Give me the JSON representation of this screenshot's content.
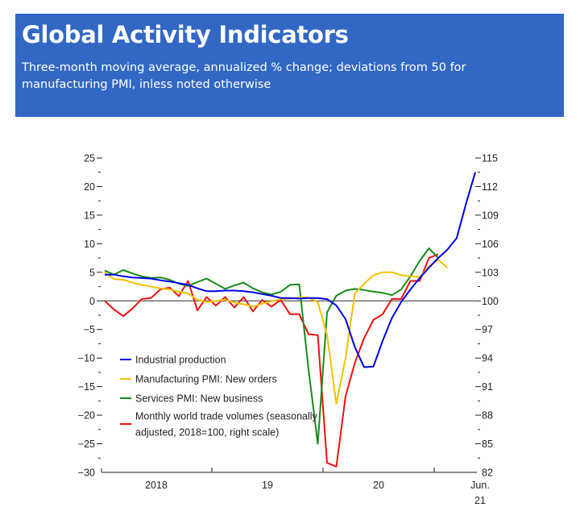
{
  "header": {
    "title": "Global Activity Indicators",
    "subtitle": "Three-month moving average, annualized % change; deviations from 50 for manufacturing PMI, inless noted otherwise"
  },
  "colors": {
    "header_bg": "#3268c4",
    "industrial": "#0000ee",
    "manufacturing": "#f2c100",
    "services": "#1a8a1a",
    "trade": "#ee1111",
    "zero_line": "#555555"
  },
  "chart_data": {
    "type": "line",
    "title": "Global Activity Indicators",
    "subtitle": "Three-month moving average, annualized % change; deviations from 50 for manufacturing PMI, inless noted otherwise",
    "x_start": "2018-01",
    "x_end": "2021-06",
    "x_tick_labels": [
      "2018",
      "19",
      "20",
      "Jun.",
      "21"
    ],
    "ylim_left": [
      -30,
      25
    ],
    "left_ticks": [
      "25",
      "20",
      "15",
      "10",
      "5",
      "0",
      "−5",
      "−10",
      "−15",
      "−20",
      "−25",
      "−30"
    ],
    "ylim_right": [
      82,
      115
    ],
    "right_ticks": [
      "115",
      "112",
      "109",
      "106",
      "103",
      "100",
      "97",
      "94",
      "91",
      "88",
      "85",
      "82"
    ],
    "legend": "center-left",
    "series": [
      {
        "name": "Industrial production",
        "axis": "left",
        "color": "#0000ee",
        "values": [
          4.6,
          4.6,
          4.3,
          4.1,
          4.0,
          3.9,
          3.6,
          3.4,
          3.1,
          2.8,
          2.2,
          1.7,
          1.7,
          1.8,
          1.8,
          1.7,
          1.5,
          1.2,
          0.9,
          0.5,
          0.5,
          0.4,
          0.5,
          0.5,
          0.3,
          -0.8,
          -3.2,
          -8.1,
          -11.6,
          -11.5,
          -7.0,
          -3.0,
          -0.2,
          2.0,
          4.0,
          5.8,
          7.5,
          9.0,
          11.0,
          17.0,
          22.5,
          null
        ]
      },
      {
        "name": "Manufacturing PMI: New orders",
        "axis": "left",
        "color": "#f2c100",
        "values": [
          5.0,
          3.8,
          3.7,
          3.2,
          2.8,
          2.5,
          2.2,
          2.0,
          1.6,
          1.3,
          0.2,
          -0.2,
          0.0,
          0.2,
          -0.3,
          -0.6,
          -1.0,
          -0.5,
          -0.1,
          0.3,
          0.4,
          0.6,
          0.6,
          -0.2,
          -6.0,
          -18.0,
          -10.0,
          1.3,
          3.0,
          4.5,
          5.0,
          5.0,
          4.5,
          4.3,
          4.2,
          6.0,
          7.2,
          5.8,
          null,
          null,
          null,
          null
        ]
      },
      {
        "name": "Services PMI: New business",
        "axis": "left",
        "color": "#1a8a1a",
        "values": [
          5.3,
          4.6,
          5.4,
          4.8,
          4.3,
          4.0,
          4.1,
          3.7,
          3.0,
          2.6,
          3.3,
          3.9,
          3.0,
          2.1,
          2.7,
          3.2,
          2.2,
          1.5,
          1.1,
          1.6,
          2.8,
          2.9,
          -12.0,
          -25.0,
          -2.0,
          0.9,
          1.8,
          2.1,
          1.9,
          1.6,
          1.4,
          1.0,
          2.0,
          4.3,
          7.0,
          9.2,
          7.5,
          null,
          null,
          null,
          null,
          null
        ]
      },
      {
        "name": "Monthly world trade volumes (seasonally adjusted, 2018=100, right scale)",
        "axis": "right",
        "color": "#ee1111",
        "values": [
          100.0,
          99.1,
          98.4,
          99.2,
          100.2,
          100.3,
          101.2,
          101.4,
          100.5,
          102.1,
          99.0,
          100.4,
          99.5,
          100.4,
          99.3,
          100.4,
          98.9,
          100.1,
          99.4,
          100.1,
          98.6,
          98.6,
          96.5,
          96.4,
          83.0,
          82.6,
          90.0,
          93.5,
          96.1,
          98.0,
          98.6,
          100.2,
          100.2,
          102.1,
          102.1,
          104.5,
          104.9,
          null,
          null,
          null,
          null,
          null
        ]
      }
    ]
  }
}
